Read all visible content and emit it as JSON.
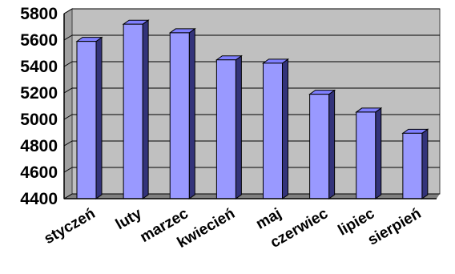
{
  "chart_data": {
    "type": "bar",
    "title": "",
    "xlabel": "",
    "ylabel": "",
    "categories": [
      "styczeń",
      "luty",
      "marzec",
      "kwiecień",
      "maj",
      "czerwiec",
      "lipiec",
      "sierpień"
    ],
    "series": [
      {
        "values": [
          5590,
          5720,
          5655,
          5450,
          5425,
          5190,
          5055,
          4895
        ]
      }
    ],
    "ylim": [
      4400,
      5800
    ],
    "yticks": [
      "4400",
      "4600",
      "4800",
      "5000",
      "5200",
      "5400",
      "5600",
      "5800"
    ],
    "grid": true,
    "legend": "none",
    "style": "3d-columns",
    "colors": {
      "bar_front": "#9999ff",
      "bar_top": "#7f7fff",
      "bar_side": "#33337a",
      "plot_bg": "#c0c0c0",
      "floor": "#808080",
      "grid": "#000000"
    }
  }
}
